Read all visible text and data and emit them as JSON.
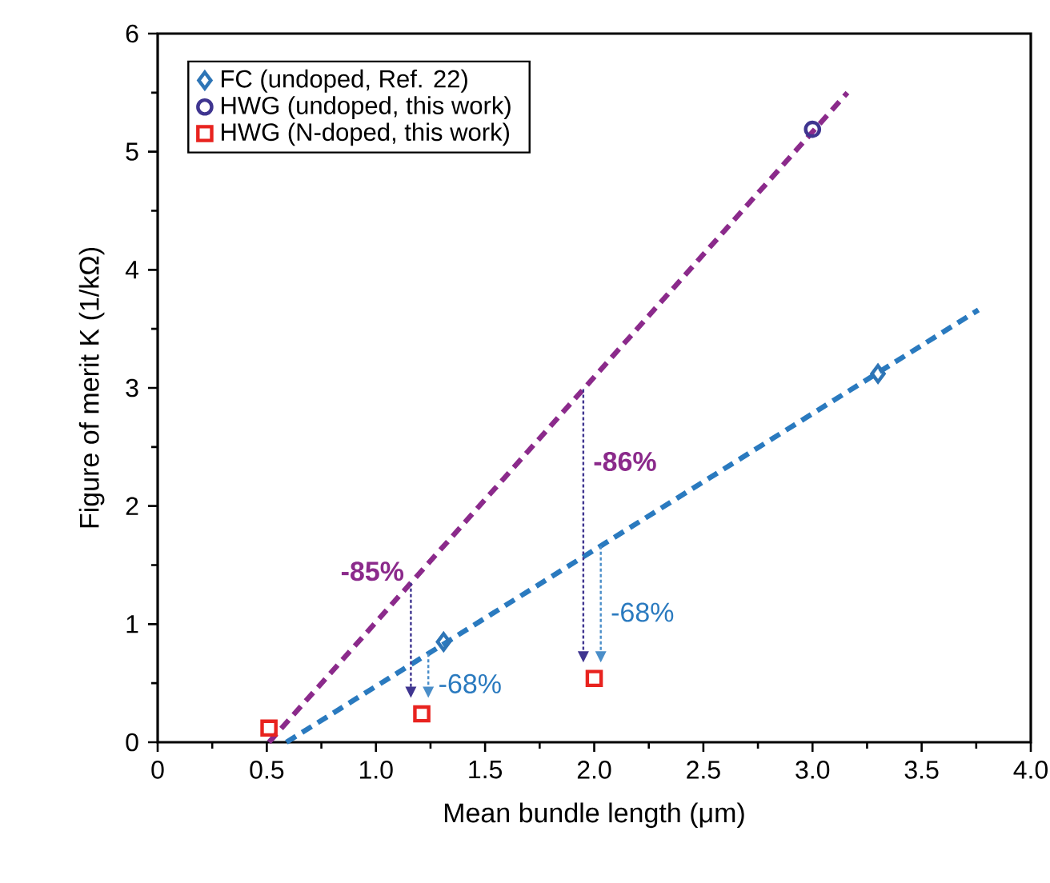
{
  "chart_data": {
    "type": "scatter",
    "xlabel": "Mean bundle length (μm)",
    "ylabel": "Figure of merit K (1/kΩ)",
    "xlim": [
      0,
      4
    ],
    "ylim": [
      0,
      6
    ],
    "xticks": [
      0,
      0.5,
      {
        "value": 1,
        "label": "1.0"
      },
      1.5,
      {
        "value": 2,
        "label": "2.0"
      },
      2.5,
      {
        "value": 3,
        "label": "3.0"
      },
      3.5,
      {
        "value": 4,
        "label": "4.0"
      }
    ],
    "yticks": [
      0,
      1,
      2,
      3,
      4,
      5,
      6
    ],
    "grid": false,
    "legend": "top left",
    "series": [
      {
        "name": "FC (undoped, Ref. 22)",
        "color": "#2e75b6",
        "marker": "diamond",
        "x": [
          1.31,
          3.3
        ],
        "values": [
          0.85,
          3.12
        ]
      },
      {
        "name": "HWG (undoped, this work)",
        "color": "#3f3590",
        "marker": "circle",
        "x": [
          3.0
        ],
        "values": [
          5.19
        ]
      },
      {
        "name": "HWG (N-doped, this work)",
        "color": "#e8231f",
        "marker": "square",
        "x": [
          0.51,
          1.21,
          2.0
        ],
        "values": [
          0.12,
          0.24,
          0.54
        ]
      },
      {
        "type": "line",
        "color": "#8b2a8b",
        "marker": "none",
        "line_style": "dashed",
        "x": [
          0.51,
          3.16
        ],
        "values": [
          0,
          5.5
        ]
      },
      {
        "type": "line",
        "color": "#2a7abf",
        "marker": "none",
        "line_style": "dashed",
        "x": [
          0.59,
          3.76
        ],
        "values": [
          0,
          3.66
        ]
      }
    ],
    "annotations": [
      {
        "text": "-85%",
        "x": 1.16,
        "y": 1.35
      },
      {
        "text": "-86%",
        "x": 1.95,
        "y": 2.99
      },
      {
        "text": "-68%",
        "x": 2.03,
        "y": 1.66
      },
      {
        "text": "-68%",
        "x": 1.24,
        "y": 0.75
      }
    ]
  }
}
